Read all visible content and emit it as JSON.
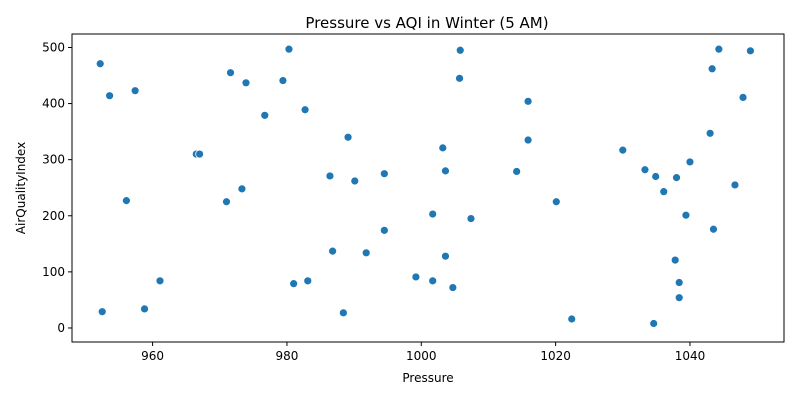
{
  "chart_data": {
    "type": "scatter",
    "title": "Pressure vs AQI in Winter (5 AM)",
    "xlabel": "Pressure",
    "ylabel": "AirQualityIndex",
    "xlim": [
      948,
      1054
    ],
    "ylim": [
      -25,
      524
    ],
    "xticks": [
      960,
      980,
      1000,
      1020,
      1040
    ],
    "yticks": [
      0,
      100,
      200,
      300,
      400,
      500
    ],
    "grid": false,
    "marker_color": "#1f77b4",
    "points": [
      {
        "x": 952.2,
        "y": 471
      },
      {
        "x": 953.6,
        "y": 414
      },
      {
        "x": 957.4,
        "y": 423
      },
      {
        "x": 956.1,
        "y": 227
      },
      {
        "x": 952.5,
        "y": 29
      },
      {
        "x": 958.8,
        "y": 34
      },
      {
        "x": 961.1,
        "y": 84
      },
      {
        "x": 966.5,
        "y": 310
      },
      {
        "x": 967.0,
        "y": 310
      },
      {
        "x": 971.0,
        "y": 225
      },
      {
        "x": 971.6,
        "y": 455
      },
      {
        "x": 973.3,
        "y": 248
      },
      {
        "x": 973.9,
        "y": 437
      },
      {
        "x": 976.7,
        "y": 379
      },
      {
        "x": 979.4,
        "y": 441
      },
      {
        "x": 980.3,
        "y": 497
      },
      {
        "x": 981.0,
        "y": 79
      },
      {
        "x": 982.7,
        "y": 389
      },
      {
        "x": 983.1,
        "y": 84
      },
      {
        "x": 986.4,
        "y": 271
      },
      {
        "x": 986.8,
        "y": 137
      },
      {
        "x": 988.4,
        "y": 27
      },
      {
        "x": 989.1,
        "y": 340
      },
      {
        "x": 990.1,
        "y": 262
      },
      {
        "x": 991.8,
        "y": 134
      },
      {
        "x": 994.5,
        "y": 275
      },
      {
        "x": 994.5,
        "y": 174
      },
      {
        "x": 999.2,
        "y": 91
      },
      {
        "x": 1001.7,
        "y": 203
      },
      {
        "x": 1001.7,
        "y": 84
      },
      {
        "x": 1003.2,
        "y": 321
      },
      {
        "x": 1003.6,
        "y": 280
      },
      {
        "x": 1003.6,
        "y": 128
      },
      {
        "x": 1004.7,
        "y": 72
      },
      {
        "x": 1005.7,
        "y": 445
      },
      {
        "x": 1005.8,
        "y": 495
      },
      {
        "x": 1007.4,
        "y": 195
      },
      {
        "x": 1014.2,
        "y": 279
      },
      {
        "x": 1015.9,
        "y": 404
      },
      {
        "x": 1015.9,
        "y": 335
      },
      {
        "x": 1020.1,
        "y": 225
      },
      {
        "x": 1022.4,
        "y": 16
      },
      {
        "x": 1030.0,
        "y": 317
      },
      {
        "x": 1033.3,
        "y": 282
      },
      {
        "x": 1034.9,
        "y": 270
      },
      {
        "x": 1034.6,
        "y": 8
      },
      {
        "x": 1036.1,
        "y": 243
      },
      {
        "x": 1037.8,
        "y": 121
      },
      {
        "x": 1038.0,
        "y": 268
      },
      {
        "x": 1038.4,
        "y": 81
      },
      {
        "x": 1038.4,
        "y": 54
      },
      {
        "x": 1039.4,
        "y": 201
      },
      {
        "x": 1040.0,
        "y": 296
      },
      {
        "x": 1043.0,
        "y": 347
      },
      {
        "x": 1043.3,
        "y": 462
      },
      {
        "x": 1043.5,
        "y": 176
      },
      {
        "x": 1044.3,
        "y": 497
      },
      {
        "x": 1046.7,
        "y": 255
      },
      {
        "x": 1047.9,
        "y": 411
      },
      {
        "x": 1049.0,
        "y": 494
      }
    ]
  }
}
